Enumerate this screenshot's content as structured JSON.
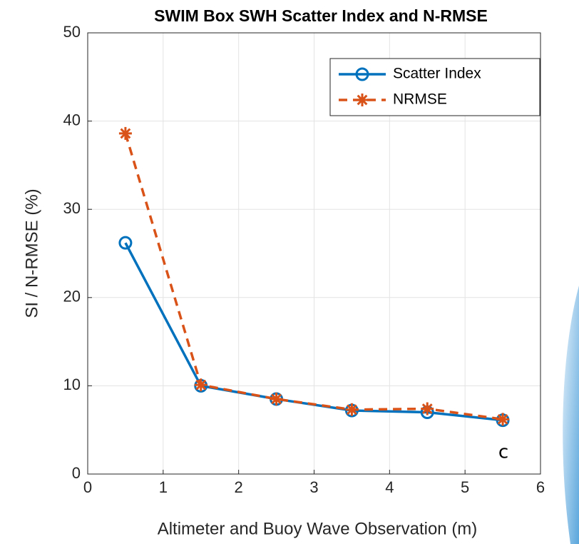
{
  "chart_data": {
    "type": "line",
    "title": "SWIM Box SWH Scatter Index and N-RMSE",
    "x_label": "Altimeter and Buoy Wave Observation (m)",
    "y_label": "SI / N-RMSE (%)",
    "annotation": "c",
    "x": [
      0.5,
      1.5,
      2.5,
      3.5,
      4.5,
      5.5
    ],
    "series": [
      {
        "name": "Scatter Index",
        "color": "#0072bd",
        "marker": "circle",
        "dash": false,
        "values": [
          26.2,
          10.0,
          8.5,
          7.2,
          7.0,
          6.1
        ]
      },
      {
        "name": "NRMSE",
        "color": "#d95319",
        "marker": "asterisk",
        "dash": true,
        "values": [
          38.6,
          10.1,
          8.5,
          7.3,
          7.4,
          6.2
        ]
      }
    ],
    "xlim": [
      0,
      6
    ],
    "xticks": [
      0,
      1,
      2,
      3,
      4,
      5,
      6
    ],
    "ylim": [
      0,
      50
    ],
    "yticks": [
      0,
      10,
      20,
      30,
      40,
      50
    ],
    "grid": true,
    "legend": "top-right"
  }
}
